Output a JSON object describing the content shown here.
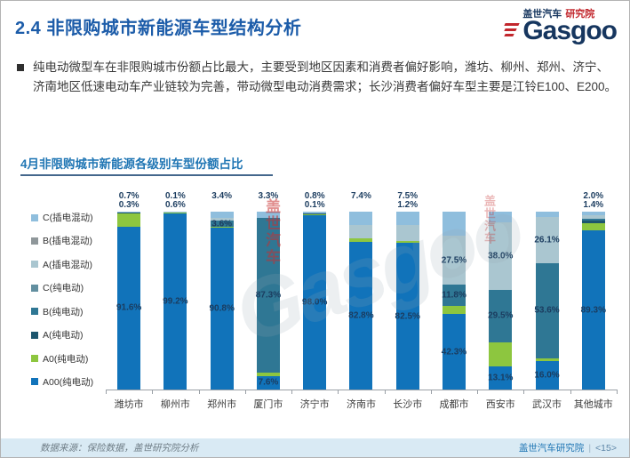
{
  "slide": {
    "title": "2.4 非限购城市新能源车型结构分析",
    "bullet": "纯电动微型车在非限购城市份额占比最大，主要受到地区因素和消费者偏好影响，潍坊、柳州、郑州、济宁、济南地区低速电动车产业链较为完善，带动微型电动消费需求；长沙消费者偏好车型主要是江铃E100、E200。",
    "footer_left": "数据来源：保险数据，盖世研究院分析",
    "footer_right": "盖世汽车研究院",
    "footer_page": "<15>"
  },
  "logo": {
    "cn": "盖世汽车",
    "sub": "研究院",
    "en": "Gasgoo"
  },
  "watermark": {
    "vertical": "盖世汽车",
    "diagonal": "Gasgoo"
  },
  "chart_data": {
    "type": "bar",
    "stacked": true,
    "units": "percent",
    "title": "4月非限购城市新能源各级别车型份额占比",
    "xlabel": "",
    "ylabel": "",
    "ylim": [
      0,
      100
    ],
    "grid": false,
    "legend_position": "left",
    "categories": [
      "潍坊市",
      "柳州市",
      "郑州市",
      "厦门市",
      "济宁市",
      "济南市",
      "长沙市",
      "成都市",
      "西安市",
      "武汉市",
      "其他城市"
    ],
    "series": [
      {
        "name": "A00(纯电动)",
        "color": "#1173ba",
        "values": [
          91.6,
          99.2,
          90.8,
          7.6,
          98.0,
          82.8,
          82.5,
          42.3,
          13.1,
          16.0,
          89.3
        ]
      },
      {
        "name": "A0(纯电动)",
        "color": "#8dc63f",
        "values": [
          7.4,
          0.6,
          0.5,
          1.8,
          1.1,
          2.0,
          1.2,
          4.9,
          13.5,
          1.5,
          4.3
        ]
      },
      {
        "name": "A(纯电动)",
        "color": "#1d566e",
        "values": [
          0.3,
          0,
          0,
          0,
          0.1,
          0,
          0,
          0,
          0,
          0,
          1.4
        ]
      },
      {
        "name": "B(纯电动)",
        "color": "#2f7794",
        "values": [
          0,
          0.1,
          3.6,
          87.3,
          0,
          0,
          0,
          11.8,
          29.5,
          53.6,
          1.0
        ]
      },
      {
        "name": "C(纯电动)",
        "color": "#628fa0",
        "values": [
          0,
          0,
          0,
          0,
          0,
          0,
          0,
          0,
          0,
          0,
          0
        ]
      },
      {
        "name": "A(插电混动)",
        "color": "#aac6d0",
        "values": [
          0,
          0,
          1.7,
          0,
          0,
          7.8,
          8.8,
          27.5,
          38.0,
          26.1,
          2.0
        ]
      },
      {
        "name": "B(插电混动)",
        "color": "#8f979a",
        "values": [
          0,
          0,
          0,
          0,
          0,
          0,
          0,
          0,
          0,
          0,
          0
        ]
      },
      {
        "name": "C(插电混动)",
        "color": "#8fbedd",
        "values": [
          0.7,
          0.1,
          3.4,
          3.3,
          0.8,
          7.4,
          7.5,
          13.5,
          5.9,
          2.8,
          2.0
        ]
      }
    ],
    "visible_labels": [
      [
        {
          "t": "0.7%",
          "s": 7,
          "p": "a1"
        },
        {
          "t": "0.3%",
          "s": 2,
          "p": "a2"
        },
        {
          "t": "91.6%",
          "s": 0,
          "p": "in"
        }
      ],
      [
        {
          "t": "0.1%",
          "s": 7,
          "p": "a1"
        },
        {
          "t": "0.6%",
          "s": 1,
          "p": "a2"
        },
        {
          "t": "99.2%",
          "s": 0,
          "p": "in"
        }
      ],
      [
        {
          "t": "3.4%",
          "s": 7,
          "p": "a1"
        },
        {
          "t": "3.6%",
          "s": 3,
          "p": "in"
        },
        {
          "t": "90.8%",
          "s": 0,
          "p": "in"
        }
      ],
      [
        {
          "t": "3.3%",
          "s": 7,
          "p": "a1"
        },
        {
          "t": "87.3%",
          "s": 3,
          "p": "in"
        },
        {
          "t": "7.6%",
          "s": 0,
          "p": "in"
        }
      ],
      [
        {
          "t": "0.8%",
          "s": 7,
          "p": "a1"
        },
        {
          "t": "0.1%",
          "s": 2,
          "p": "a2"
        },
        {
          "t": "98.0%",
          "s": 0,
          "p": "in"
        }
      ],
      [
        {
          "t": "7.4%",
          "s": 7,
          "p": "a1"
        },
        {
          "t": "82.8%",
          "s": 0,
          "p": "in"
        }
      ],
      [
        {
          "t": "7.5%",
          "s": 7,
          "p": "a1"
        },
        {
          "t": "1.2%",
          "s": 1,
          "p": "a2"
        },
        {
          "t": "82.5%",
          "s": 0,
          "p": "in"
        }
      ],
      [
        {
          "t": "27.5%",
          "s": 5,
          "p": "in"
        },
        {
          "t": "11.8%",
          "s": 3,
          "p": "in"
        },
        {
          "t": "42.3%",
          "s": 0,
          "p": "in"
        }
      ],
      [
        {
          "t": "38.0%",
          "s": 5,
          "p": "in"
        },
        {
          "t": "29.5%",
          "s": 3,
          "p": "in"
        },
        {
          "t": "13.1%",
          "s": 0,
          "p": "in"
        }
      ],
      [
        {
          "t": "26.1%",
          "s": 5,
          "p": "in"
        },
        {
          "t": "53.6%",
          "s": 3,
          "p": "in"
        },
        {
          "t": "16.0%",
          "s": 0,
          "p": "in"
        }
      ],
      [
        {
          "t": "2.0%",
          "s": 7,
          "p": "a1"
        },
        {
          "t": "1.4%",
          "s": 2,
          "p": "a2"
        },
        {
          "t": "89.3%",
          "s": 0,
          "p": "in"
        }
      ]
    ]
  }
}
